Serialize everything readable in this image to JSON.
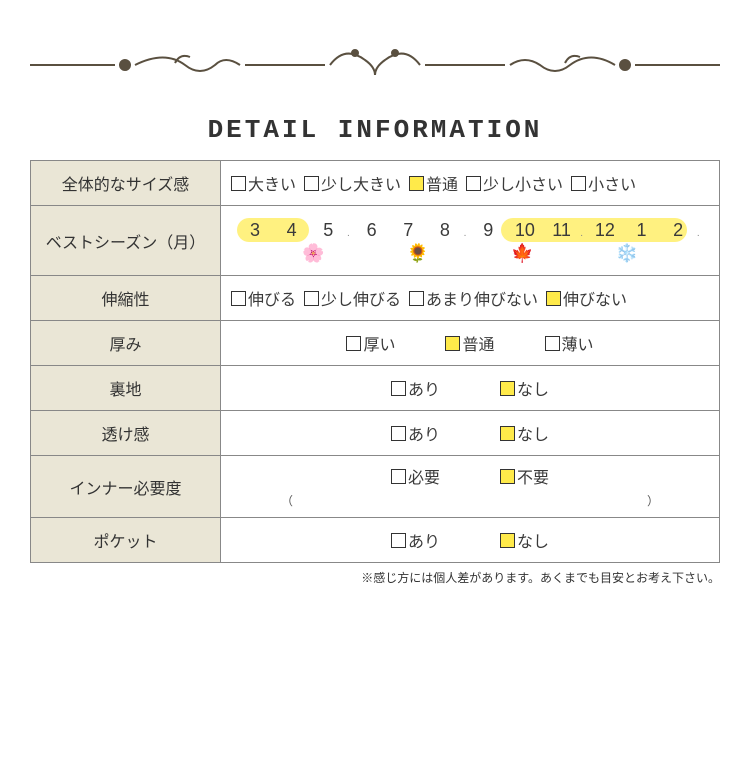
{
  "title": "DETAIL INFORMATION",
  "colors": {
    "label_bg": "#eae6d6",
    "checked_bg": "#ffea4a",
    "pill_bg": "#fff180",
    "border": "#888888",
    "ornament": "#5a5040"
  },
  "ornament": {
    "color": "#5a5040"
  },
  "rows": {
    "size": {
      "label": "全体的なサイズ感",
      "options": [
        {
          "text": "大きい",
          "checked": false
        },
        {
          "text": "少し大きい",
          "checked": false
        },
        {
          "text": "普通",
          "checked": true
        },
        {
          "text": "少し小さい",
          "checked": false
        },
        {
          "text": "小さい",
          "checked": false
        }
      ]
    },
    "season": {
      "label": "ベストシーズン（月）",
      "months": [
        "3",
        "4",
        "5",
        "6",
        "7",
        "8",
        "9",
        "10",
        "11",
        "12",
        "1",
        "2"
      ],
      "highlights": [
        {
          "start": 0,
          "end": 1
        },
        {
          "start": 7,
          "end": 11
        }
      ],
      "icons": [
        "🌸",
        "🌻",
        "🍁",
        "❄️"
      ]
    },
    "stretch": {
      "label": "伸縮性",
      "options": [
        {
          "text": "伸びる",
          "checked": false
        },
        {
          "text": "少し伸びる",
          "checked": false
        },
        {
          "text": "あまり伸びない",
          "checked": false
        },
        {
          "text": "伸びない",
          "checked": true
        }
      ]
    },
    "thickness": {
      "label": "厚み",
      "options": [
        {
          "text": "厚い",
          "checked": false
        },
        {
          "text": "普通",
          "checked": true
        },
        {
          "text": "薄い",
          "checked": false
        }
      ]
    },
    "lining": {
      "label": "裏地",
      "options": [
        {
          "text": "あり",
          "checked": false
        },
        {
          "text": "なし",
          "checked": true
        }
      ]
    },
    "sheer": {
      "label": "透け感",
      "options": [
        {
          "text": "あり",
          "checked": false
        },
        {
          "text": "なし",
          "checked": true
        }
      ]
    },
    "inner": {
      "label": "インナー必要度",
      "options": [
        {
          "text": "必要",
          "checked": false
        },
        {
          "text": "不要",
          "checked": true
        }
      ],
      "paren_left": "（",
      "paren_right": "）"
    },
    "pocket": {
      "label": "ポケット",
      "options": [
        {
          "text": "あり",
          "checked": false
        },
        {
          "text": "なし",
          "checked": true
        }
      ]
    }
  },
  "footnote": "※感じ方には個人差があります。あくまでも目安とお考え下さい。"
}
